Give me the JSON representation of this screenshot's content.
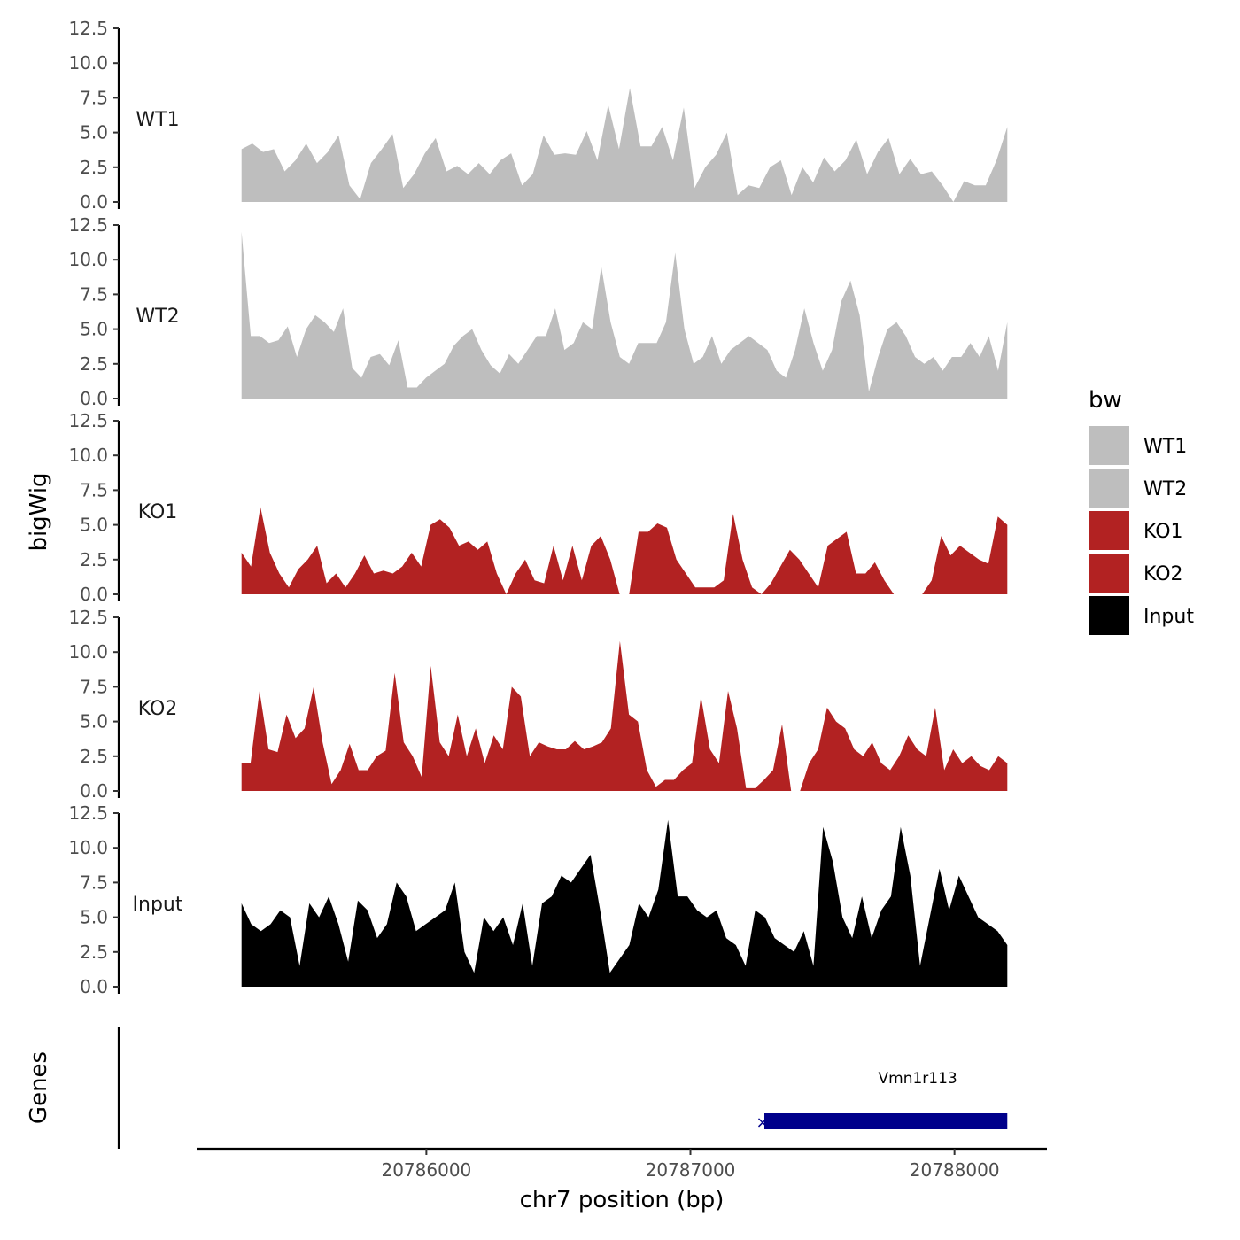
{
  "chart_data": {
    "type": "area",
    "xlabel": "chr7 position (bp)",
    "ylabel": "bigWig",
    "genes_label": "Genes",
    "xlim": [
      20785130,
      20788350
    ],
    "x_ticks": [
      20786000,
      20787000,
      20788000
    ],
    "x_tick_labels": [
      "20786000",
      "20787000",
      "20788000"
    ],
    "ylim": [
      0,
      12.5
    ],
    "y_ticks": [
      0,
      2.5,
      5,
      7.5,
      10,
      12.5
    ],
    "y_tick_labels": [
      "0.0",
      "2.5",
      "5.0",
      "7.5",
      "10.0",
      "12.5"
    ],
    "x_start": 20785300,
    "x_end": 20788200,
    "step": 50,
    "legend": {
      "title": "bw",
      "entries": [
        {
          "label": "WT1",
          "color": "#bebebe"
        },
        {
          "label": "WT2",
          "color": "#bebebe"
        },
        {
          "label": "KO1",
          "color": "#b22222"
        },
        {
          "label": "KO2",
          "color": "#b22222"
        },
        {
          "label": "Input",
          "color": "#000000"
        }
      ]
    },
    "series": [
      {
        "name": "WT1",
        "color": "#bebebe",
        "values": [
          3.8,
          4.2,
          3.6,
          3.8,
          2.2,
          3.0,
          4.2,
          2.8,
          3.6,
          4.8,
          1.2,
          0.2,
          2.8,
          3.8,
          4.9,
          1.0,
          2.0,
          3.5,
          4.6,
          2.2,
          2.6,
          2.0,
          2.8,
          2.0,
          3.0,
          3.5,
          1.2,
          2.0,
          4.8,
          3.4,
          3.5,
          3.4,
          5.1,
          3.0,
          7.0,
          3.8,
          8.2,
          4.0,
          4.0,
          5.4,
          3.0,
          6.8,
          1.0,
          2.5,
          3.4,
          5.0,
          0.5,
          1.2,
          1.0,
          2.5,
          3.0,
          0.5,
          2.5,
          1.4,
          3.2,
          2.2,
          3.0,
          4.5,
          2.0,
          3.6,
          4.6,
          2.0,
          3.1,
          2.0,
          2.2,
          1.2,
          0.0,
          1.5,
          1.2,
          1.2,
          3.0,
          5.4
        ]
      },
      {
        "name": "WT2",
        "color": "#bebebe",
        "values": [
          12.0,
          4.5,
          4.5,
          4.0,
          4.2,
          5.2,
          3.0,
          5.0,
          6.0,
          5.5,
          4.8,
          6.5,
          2.2,
          1.5,
          3.0,
          3.2,
          2.4,
          4.2,
          0.8,
          0.8,
          1.5,
          2.0,
          2.5,
          3.8,
          4.5,
          5.0,
          3.5,
          2.4,
          1.8,
          3.2,
          2.5,
          3.5,
          4.5,
          4.5,
          6.5,
          3.5,
          4.0,
          5.5,
          5.0,
          9.5,
          5.5,
          3.0,
          2.5,
          4.0,
          4.0,
          4.0,
          5.5,
          10.5,
          5.0,
          2.5,
          3.0,
          4.5,
          2.5,
          3.5,
          4.0,
          4.5,
          4.0,
          3.5,
          2.0,
          1.5,
          3.5,
          6.5,
          4.0,
          2.0,
          3.5,
          7.0,
          8.5,
          6.0,
          0.5,
          3.0,
          5.0,
          5.5,
          4.5,
          3.0,
          2.5,
          3.0,
          2.0,
          3.0,
          3.0,
          4.0,
          3.0,
          4.5,
          2.0,
          5.5
        ]
      },
      {
        "name": "KO1",
        "color": "#b22222",
        "values": [
          3.0,
          2.0,
          6.3,
          3.0,
          1.5,
          0.5,
          1.8,
          2.5,
          3.5,
          0.8,
          1.5,
          0.5,
          1.5,
          2.8,
          1.5,
          1.7,
          1.5,
          2.0,
          3.0,
          2.0,
          5.0,
          5.4,
          4.8,
          3.5,
          3.8,
          3.2,
          3.8,
          1.5,
          0.0,
          1.5,
          2.5,
          1.0,
          0.8,
          3.5,
          1.0,
          3.5,
          1.0,
          3.5,
          4.2,
          2.5,
          0.0,
          0.0,
          4.5,
          4.5,
          5.1,
          4.8,
          2.5,
          1.5,
          0.5,
          0.5,
          0.5,
          1.0,
          5.8,
          2.5,
          0.5,
          0.0,
          0.8,
          2.0,
          3.2,
          2.5,
          1.5,
          0.5,
          3.5,
          4.0,
          4.5,
          1.5,
          1.5,
          2.3,
          1.0,
          0.0,
          0.0,
          0.0,
          0.0,
          1.0,
          4.2,
          2.8,
          3.5,
          3.0,
          2.5,
          2.2,
          5.6,
          5.0
        ]
      },
      {
        "name": "KO2",
        "color": "#b22222",
        "values": [
          2.0,
          2.0,
          7.2,
          3.0,
          2.8,
          5.5,
          3.8,
          4.5,
          7.5,
          3.5,
          0.5,
          1.5,
          3.4,
          1.5,
          1.5,
          2.5,
          2.9,
          8.5,
          3.5,
          2.5,
          1.0,
          9.0,
          3.5,
          2.5,
          5.5,
          2.5,
          4.5,
          2.0,
          4.0,
          3.0,
          7.5,
          6.8,
          2.5,
          3.5,
          3.2,
          3.0,
          3.0,
          3.6,
          3.0,
          3.2,
          3.5,
          4.5,
          10.8,
          5.5,
          5.0,
          1.5,
          0.3,
          0.8,
          0.8,
          1.5,
          2.0,
          6.8,
          3.0,
          2.0,
          7.2,
          4.5,
          0.2,
          0.2,
          0.8,
          1.5,
          4.8,
          0.0,
          0.0,
          2.0,
          3.0,
          6.0,
          5.0,
          4.5,
          3.0,
          2.5,
          3.5,
          2.0,
          1.5,
          2.5,
          4.0,
          3.0,
          2.5,
          6.0,
          1.5,
          3.0,
          2.0,
          2.5,
          1.8,
          1.5,
          2.5,
          2.0
        ]
      },
      {
        "name": "Input",
        "color": "#000000",
        "values": [
          6.0,
          4.5,
          4.0,
          4.5,
          5.5,
          5.0,
          1.5,
          6.0,
          5.0,
          6.5,
          4.5,
          1.8,
          6.2,
          5.5,
          3.5,
          4.5,
          7.5,
          6.5,
          4.0,
          4.5,
          5.0,
          5.5,
          7.5,
          2.5,
          1.0,
          5.0,
          4.0,
          5.0,
          3.0,
          6.0,
          1.5,
          6.0,
          6.5,
          8.0,
          7.5,
          8.5,
          9.5,
          5.5,
          1.0,
          2.0,
          3.0,
          6.0,
          5.0,
          7.0,
          12.0,
          6.5,
          6.5,
          5.5,
          5.0,
          5.5,
          3.5,
          3.0,
          1.5,
          5.5,
          5.0,
          3.5,
          3.0,
          2.5,
          4.0,
          1.5,
          11.5,
          9.0,
          5.0,
          3.5,
          6.5,
          3.5,
          5.5,
          6.5,
          11.5,
          8.0,
          1.5,
          5.0,
          8.5,
          5.5,
          8.0,
          6.5,
          5.0,
          4.5,
          4.0,
          3.0
        ]
      }
    ],
    "genes": [
      {
        "name": "Vmn1r113",
        "start": 20787280,
        "end": 20788200,
        "color": "#00008b",
        "strand_marker": "×"
      }
    ]
  }
}
